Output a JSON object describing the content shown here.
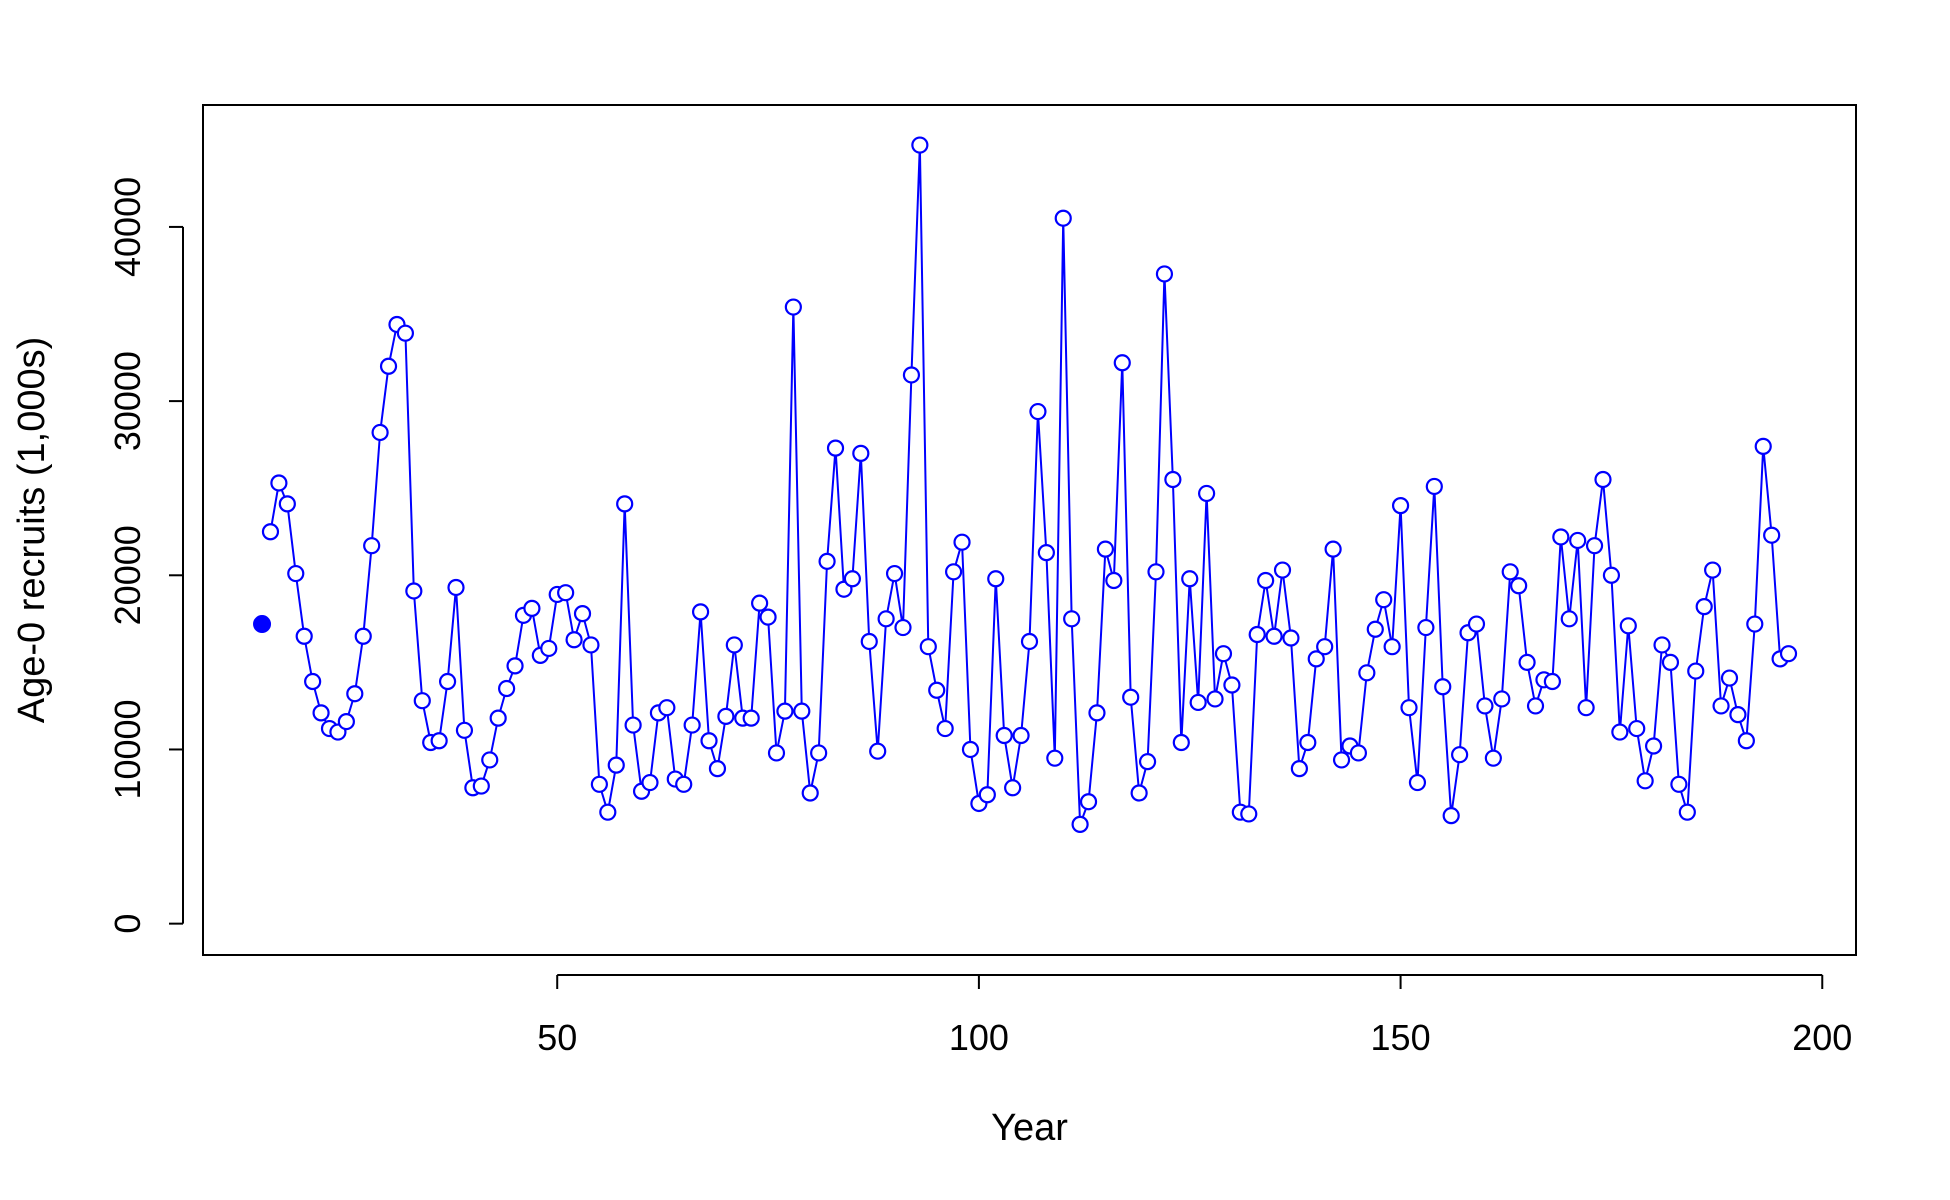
{
  "chart_data": {
    "type": "line",
    "title": "",
    "xlabel": "Year",
    "ylabel": "Age-0 recruits (1,000s)",
    "xlim": [
      8,
      204
    ],
    "ylim": [
      -1800,
      47000
    ],
    "x_ticks": [
      50,
      100,
      150,
      200
    ],
    "y_ticks": [
      0,
      10000,
      20000,
      30000,
      40000
    ],
    "grid": false,
    "legend": "none",
    "colors": {
      "series": "#0000ff",
      "axis": "#000000",
      "background": "#ffffff"
    },
    "initial_point": {
      "x": 15,
      "y": 17200,
      "marker": "filled-circle"
    },
    "series": [
      {
        "marker": "open-circle",
        "x": [
          16,
          17,
          18,
          19,
          20,
          21,
          22,
          23,
          24,
          25,
          26,
          27,
          28,
          29,
          30,
          31,
          32,
          33,
          34,
          35,
          36,
          37,
          38,
          39,
          40,
          41,
          42,
          43,
          44,
          45,
          46,
          47,
          48,
          49,
          50,
          51,
          52,
          53,
          54,
          55,
          56,
          57,
          58,
          59,
          60,
          61,
          62,
          63,
          64,
          65,
          66,
          67,
          68,
          69,
          70,
          71,
          72,
          73,
          74,
          75,
          76,
          77,
          78,
          79,
          80,
          81,
          82,
          83,
          84,
          85,
          86,
          87,
          88,
          89,
          90,
          91,
          92,
          93,
          94,
          95,
          96,
          97,
          98,
          99,
          100,
          101,
          102,
          103,
          104,
          105,
          106,
          107,
          108,
          109,
          110,
          111,
          112,
          113,
          114,
          115,
          116,
          117,
          118,
          119,
          120,
          121,
          122,
          123,
          124,
          125,
          126,
          127,
          128,
          129,
          130,
          131,
          132,
          133,
          134,
          135,
          136,
          137,
          138,
          139,
          140,
          141,
          142,
          143,
          144,
          145,
          146,
          147,
          148,
          149,
          150,
          151,
          152,
          153,
          154,
          155,
          156,
          157,
          158,
          159,
          160,
          161,
          162,
          163,
          164,
          165,
          166,
          167,
          168,
          169,
          170,
          171,
          172,
          173,
          174,
          175,
          176,
          177,
          178,
          179,
          180,
          181,
          182,
          183,
          184,
          185,
          186,
          187,
          188,
          189,
          190,
          191,
          192,
          193,
          194,
          195,
          196
        ],
        "y": [
          22500,
          25300,
          24100,
          20100,
          16500,
          13900,
          12100,
          11200,
          11000,
          11600,
          13200,
          16500,
          21700,
          28200,
          32000,
          34400,
          33900,
          19100,
          12800,
          10400,
          10500,
          13900,
          19300,
          11100,
          7800,
          7900,
          9400,
          11800,
          13500,
          14800,
          17700,
          18100,
          15400,
          15800,
          18900,
          19000,
          16300,
          17800,
          16000,
          8000,
          6400,
          9100,
          24100,
          11400,
          7600,
          8100,
          12100,
          12400,
          8300,
          8000,
          11400,
          17900,
          10500,
          8900,
          11900,
          16000,
          11800,
          11800,
          18400,
          17600,
          9800,
          12200,
          35400,
          12200,
          7500,
          9800,
          20800,
          27300,
          19200,
          19800,
          27000,
          16200,
          9900,
          17500,
          20100,
          17000,
          31500,
          44700,
          15900,
          13400,
          11200,
          20200,
          21900,
          10000,
          6900,
          7400,
          19800,
          10800,
          7800,
          10800,
          16200,
          29400,
          21300,
          9500,
          40500,
          17500,
          5700,
          7000,
          12100,
          21500,
          19700,
          32200,
          13000,
          7500,
          9300,
          20200,
          37300,
          25500,
          10400,
          19800,
          12700,
          24700,
          12900,
          15500,
          13700,
          6400,
          6300,
          16600,
          19700,
          16500,
          20300,
          16400,
          8900,
          10400,
          15200,
          15900,
          21500,
          9400,
          10200,
          9800,
          14400,
          16900,
          18600,
          15900,
          24000,
          12400,
          8100,
          17000,
          25100,
          13600,
          6200,
          9700,
          16700,
          17200,
          12500,
          9500,
          12900,
          20200,
          19400,
          15000,
          12500,
          14000,
          13900,
          22200,
          17500,
          22000,
          12400,
          21700,
          25500,
          20000,
          11000,
          17100,
          11200,
          8200,
          10200,
          16000,
          15000,
          8000,
          6400,
          14500,
          18200,
          20300,
          12500,
          14100,
          12000,
          10500,
          17200,
          27400,
          22300,
          15200,
          15500
        ]
      }
    ]
  }
}
